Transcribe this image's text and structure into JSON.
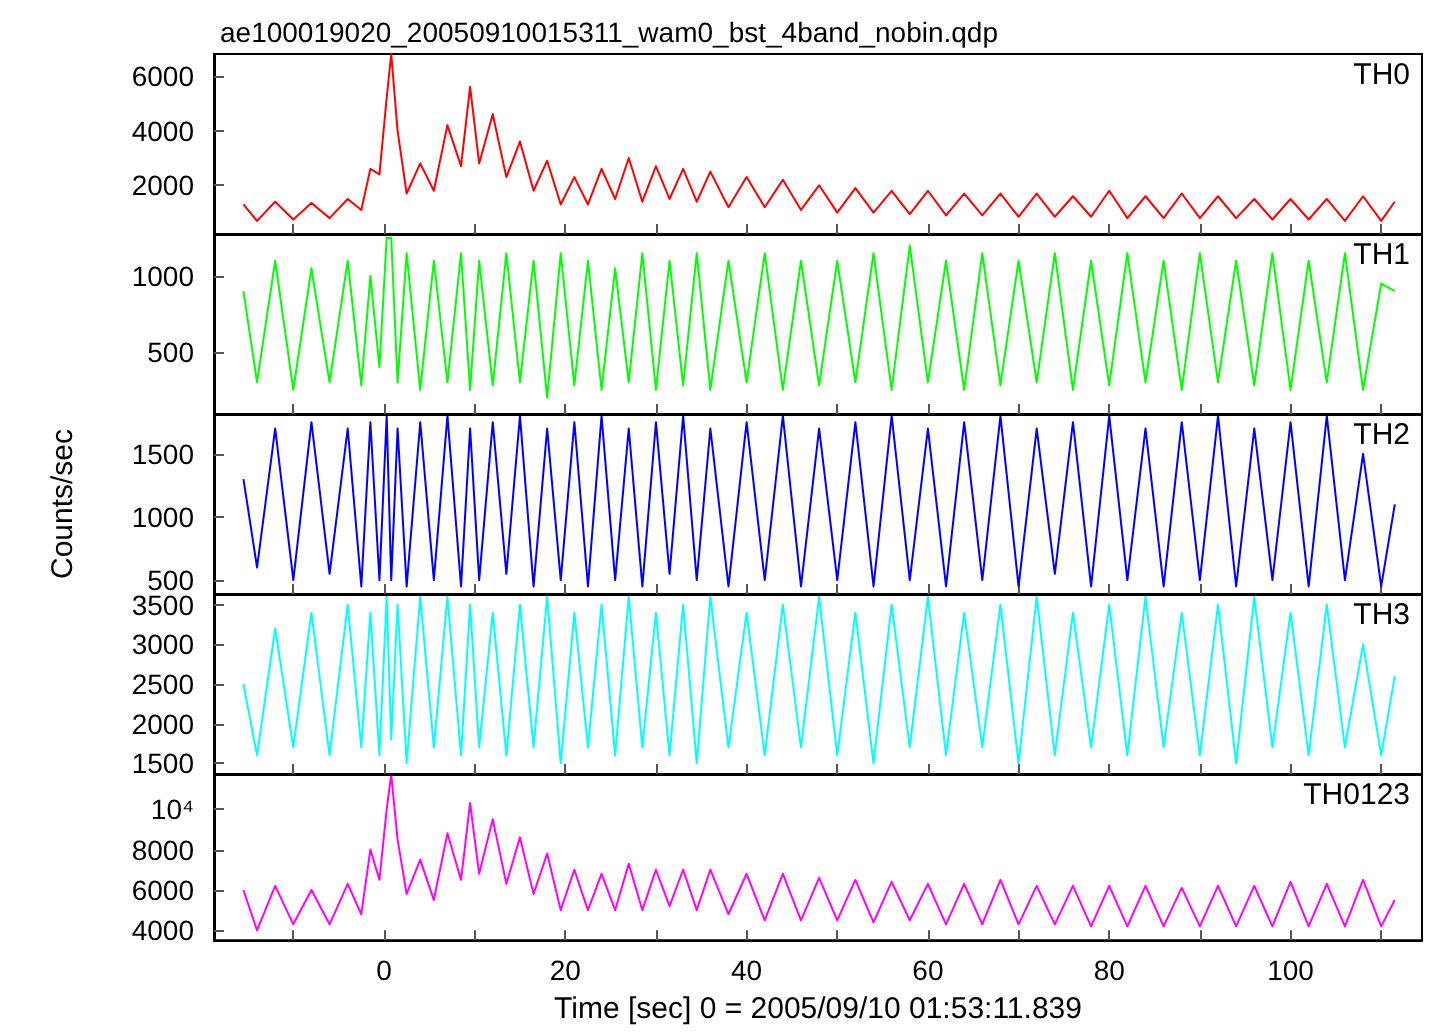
{
  "chart_data": [
    {
      "type": "line",
      "title": "ae100019020_20050910015311_wam0_bst_4band_nobin.qdp",
      "tick_labels": "y",
      "grid": false,
      "marker": "none",
      "x": [
        -15.5,
        -14,
        -12,
        -10,
        -8,
        -6,
        -4,
        -2.5,
        -1.5,
        -0.5,
        0.3,
        0.8,
        1.5,
        2.5,
        4,
        5.5,
        7,
        8.5,
        9.5,
        10.5,
        12,
        13.5,
        15,
        16.5,
        18,
        19.5,
        21,
        22.5,
        24,
        25.5,
        27,
        28.5,
        30,
        31.5,
        33,
        34.5,
        36,
        38,
        40,
        42,
        44,
        46,
        48,
        50,
        52,
        54,
        56,
        58,
        60,
        62,
        64,
        66,
        68,
        70,
        72,
        74,
        76,
        78,
        80,
        82,
        84,
        86,
        88,
        90,
        92,
        94,
        96,
        98,
        100,
        102,
        104,
        106,
        108,
        110,
        111.5
      ],
      "xlim": [
        -18.75,
        114.5
      ],
      "xticks": [
        {
          "value": -10,
          "label": null
        },
        0,
        {
          "value": 10,
          "label": null
        },
        20,
        {
          "value": 30,
          "label": null
        },
        40,
        {
          "value": 50,
          "label": null
        },
        60,
        {
          "value": 70,
          "label": null
        },
        80,
        {
          "value": 90,
          "label": null
        },
        100,
        {
          "value": 110,
          "label": null
        }
      ],
      "ylim": [
        220,
        6800
      ],
      "yticks": [
        2000,
        4000,
        6000
      ],
      "series": [
        {
          "name": "TH0",
          "color": "#ff0000",
          "values": [
            1300,
            700,
            1400,
            750,
            1350,
            800,
            1500,
            1100,
            2600,
            2400,
            5200,
            6800,
            4000,
            1700,
            2800,
            1800,
            4200,
            2700,
            5600,
            2800,
            4600,
            2300,
            3600,
            1800,
            2900,
            1300,
            2300,
            1300,
            2600,
            1500,
            3000,
            1400,
            2700,
            1500,
            2600,
            1400,
            2500,
            1200,
            2300,
            1200,
            2200,
            1100,
            2000,
            1000,
            1900,
            1000,
            1800,
            950,
            1800,
            900,
            1700,
            900,
            1700,
            850,
            1700,
            850,
            1600,
            850,
            1800,
            800,
            1600,
            800,
            1700,
            800,
            1600,
            800,
            1500,
            750,
            1500,
            750,
            1500,
            700,
            1600,
            700,
            1400
          ]
        }
      ]
    },
    {
      "type": "line",
      "tick_labels": "y",
      "grid": false,
      "marker": "none",
      "x": [
        -15.5,
        -14,
        -12,
        -10,
        -8,
        -6,
        -4,
        -2.5,
        -1.5,
        -0.5,
        0.3,
        0.8,
        1.5,
        2.5,
        4,
        5.5,
        7,
        8.5,
        9.5,
        10.5,
        12,
        13.5,
        15,
        16.5,
        18,
        19.5,
        21,
        22.5,
        24,
        25.5,
        27,
        28.5,
        30,
        31.5,
        33,
        34.5,
        36,
        38,
        40,
        42,
        44,
        46,
        48,
        50,
        52,
        54,
        56,
        58,
        60,
        62,
        64,
        66,
        68,
        70,
        72,
        74,
        76,
        78,
        80,
        82,
        84,
        86,
        88,
        90,
        92,
        94,
        96,
        98,
        100,
        102,
        104,
        106,
        108,
        110,
        111.5
      ],
      "xlim": [
        -18.75,
        114.5
      ],
      "xticks": [
        {
          "value": -10,
          "label": null
        },
        0,
        {
          "value": 10,
          "label": null
        },
        20,
        {
          "value": 30,
          "label": null
        },
        40,
        {
          "value": 50,
          "label": null
        },
        60,
        {
          "value": 70,
          "label": null
        },
        80,
        {
          "value": 90,
          "label": null
        },
        100,
        {
          "value": 110,
          "label": null
        }
      ],
      "ylim": [
        92,
        1276
      ],
      "yticks": [
        500,
        1000
      ],
      "series": [
        {
          "name": "TH1",
          "color": "#00ff00",
          "values": [
            900,
            300,
            1100,
            250,
            1050,
            300,
            1100,
            280,
            1000,
            400,
            1250,
            1250,
            300,
            1150,
            250,
            1100,
            300,
            1150,
            250,
            1100,
            280,
            1150,
            300,
            1100,
            200,
            1150,
            280,
            1100,
            250,
            1050,
            300,
            1150,
            250,
            1100,
            280,
            1150,
            250,
            1100,
            300,
            1150,
            250,
            1100,
            280,
            1100,
            300,
            1150,
            250,
            1200,
            300,
            1100,
            250,
            1150,
            280,
            1100,
            300,
            1150,
            250,
            1100,
            280,
            1150,
            300,
            1100,
            250,
            1150,
            300,
            1100,
            280,
            1150,
            250,
            1100,
            300,
            1150,
            250,
            950,
            900
          ]
        }
      ]
    },
    {
      "type": "line",
      "ylabel": "Counts/sec",
      "tick_labels": "y",
      "grid": false,
      "marker": "none",
      "x": [
        -15.5,
        -14,
        -12,
        -10,
        -8,
        -6,
        -4,
        -2.5,
        -1.5,
        -0.5,
        0.3,
        0.8,
        1.5,
        2.5,
        4,
        5.5,
        7,
        8.5,
        9.5,
        10.5,
        12,
        13.5,
        15,
        16.5,
        18,
        19.5,
        21,
        22.5,
        24,
        25.5,
        27,
        28.5,
        30,
        31.5,
        33,
        34.5,
        36,
        38,
        40,
        42,
        44,
        46,
        48,
        50,
        52,
        54,
        56,
        58,
        60,
        62,
        64,
        66,
        68,
        70,
        72,
        74,
        76,
        78,
        80,
        82,
        84,
        86,
        88,
        90,
        92,
        94,
        96,
        98,
        100,
        102,
        104,
        106,
        108,
        110,
        111.5
      ],
      "xlim": [
        -18.75,
        114.5
      ],
      "xticks": [
        {
          "value": -10,
          "label": null
        },
        0,
        {
          "value": 10,
          "label": null
        },
        20,
        {
          "value": 30,
          "label": null
        },
        40,
        {
          "value": 50,
          "label": null
        },
        60,
        {
          "value": 70,
          "label": null
        },
        80,
        {
          "value": 90,
          "label": null
        },
        100,
        {
          "value": 110,
          "label": null
        }
      ],
      "ylim": [
        390,
        1815
      ],
      "yticks": [
        500,
        1000,
        1500
      ],
      "series": [
        {
          "name": "TH2",
          "color": "#0000ff",
          "values": [
            1300,
            600,
            1700,
            500,
            1750,
            550,
            1700,
            450,
            1750,
            500,
            1800,
            500,
            1700,
            450,
            1750,
            500,
            1800,
            450,
            1700,
            500,
            1750,
            550,
            1800,
            450,
            1700,
            500,
            1750,
            450,
            1800,
            500,
            1700,
            450,
            1750,
            550,
            1800,
            500,
            1700,
            450,
            1750,
            500,
            1800,
            450,
            1700,
            500,
            1750,
            450,
            1800,
            500,
            1700,
            450,
            1750,
            500,
            1800,
            450,
            1700,
            550,
            1750,
            450,
            1800,
            500,
            1700,
            450,
            1750,
            500,
            1800,
            450,
            1700,
            500,
            1750,
            450,
            1800,
            500,
            1500,
            450,
            1100
          ]
        }
      ]
    },
    {
      "type": "line",
      "tick_labels": "y",
      "grid": false,
      "marker": "none",
      "x": [
        -15.5,
        -14,
        -12,
        -10,
        -8,
        -6,
        -4,
        -2.5,
        -1.5,
        -0.5,
        0.3,
        0.8,
        1.5,
        2.5,
        4,
        5.5,
        7,
        8.5,
        9.5,
        10.5,
        12,
        13.5,
        15,
        16.5,
        18,
        19.5,
        21,
        22.5,
        24,
        25.5,
        27,
        28.5,
        30,
        31.5,
        33,
        34.5,
        36,
        38,
        40,
        42,
        44,
        46,
        48,
        50,
        52,
        54,
        56,
        58,
        60,
        62,
        64,
        66,
        68,
        70,
        72,
        74,
        76,
        78,
        80,
        82,
        84,
        86,
        88,
        90,
        92,
        94,
        96,
        98,
        100,
        102,
        104,
        106,
        108,
        110,
        111.5
      ],
      "xlim": [
        -18.75,
        114.5
      ],
      "xticks": [
        {
          "value": -10,
          "label": null
        },
        0,
        {
          "value": 10,
          "label": null
        },
        20,
        {
          "value": 30,
          "label": null
        },
        40,
        {
          "value": 50,
          "label": null
        },
        60,
        {
          "value": 70,
          "label": null
        },
        80,
        {
          "value": 90,
          "label": null
        },
        100,
        {
          "value": 110,
          "label": null
        }
      ],
      "ylim": [
        1365,
        3635
      ],
      "yticks": [
        1500,
        2000,
        2500,
        3000,
        3500
      ],
      "series": [
        {
          "name": "TH3",
          "color": "#00ffff",
          "values": [
            2500,
            1600,
            3200,
            1700,
            3400,
            1600,
            3500,
            1700,
            3400,
            1600,
            3600,
            1800,
            3500,
            1500,
            3600,
            1700,
            3600,
            1600,
            3500,
            1700,
            3400,
            1600,
            3500,
            1700,
            3600,
            1500,
            3400,
            1700,
            3500,
            1600,
            3600,
            1700,
            3400,
            1600,
            3500,
            1500,
            3600,
            1700,
            3400,
            1600,
            3500,
            1700,
            3600,
            1600,
            3400,
            1500,
            3500,
            1700,
            3600,
            1600,
            3400,
            1700,
            3500,
            1500,
            3600,
            1600,
            3400,
            1700,
            3500,
            1600,
            3600,
            1700,
            3400,
            1600,
            3500,
            1500,
            3600,
            1700,
            3400,
            1600,
            3500,
            1700,
            3000,
            1600,
            2600
          ]
        }
      ]
    },
    {
      "type": "line",
      "xlabel": "Time [sec] 0 = 2005/09/10 01:53:11.839",
      "grid": false,
      "marker": "none",
      "x": [
        -15.5,
        -14,
        -12,
        -10,
        -8,
        -6,
        -4,
        -2.5,
        -1.5,
        -0.5,
        0.3,
        0.8,
        1.5,
        2.5,
        4,
        5.5,
        7,
        8.5,
        9.5,
        10.5,
        12,
        13.5,
        15,
        16.5,
        18,
        19.5,
        21,
        22.5,
        24,
        25.5,
        27,
        28.5,
        30,
        31.5,
        33,
        34.5,
        36,
        38,
        40,
        42,
        44,
        46,
        48,
        50,
        52,
        54,
        56,
        58,
        60,
        62,
        64,
        66,
        68,
        70,
        72,
        74,
        76,
        78,
        80,
        82,
        84,
        86,
        88,
        90,
        92,
        94,
        96,
        98,
        100,
        102,
        104,
        106,
        108,
        110,
        111.5
      ],
      "xlim": [
        -18.75,
        114.5
      ],
      "xticks": [
        {
          "value": -10,
          "label": null
        },
        0,
        {
          "value": 10,
          "label": null
        },
        20,
        {
          "value": 30,
          "label": null
        },
        40,
        {
          "value": 50,
          "label": null
        },
        60,
        {
          "value": 70,
          "label": null
        },
        80,
        {
          "value": 90,
          "label": null
        },
        100,
        {
          "value": 110,
          "label": null
        }
      ],
      "ylim": [
        3515,
        11735
      ],
      "yticks": [
        4000,
        6000,
        8000,
        {
          "value": 10000,
          "label": "10⁴"
        }
      ],
      "series": [
        {
          "name": "TH0123",
          "color": "#ff00ff",
          "values": [
            6000,
            4000,
            6200,
            4300,
            6000,
            4300,
            6300,
            4800,
            8000,
            6500,
            10000,
            11700,
            8500,
            5800,
            7500,
            5500,
            8800,
            6500,
            10300,
            6800,
            9500,
            6300,
            8600,
            5800,
            7800,
            5000,
            7000,
            5000,
            6800,
            5000,
            7300,
            5000,
            7000,
            5200,
            7000,
            5000,
            7000,
            4800,
            6800,
            4500,
            6800,
            4500,
            6600,
            4500,
            6500,
            4400,
            6400,
            4500,
            6300,
            4300,
            6300,
            4300,
            6500,
            4300,
            6200,
            4300,
            6200,
            4200,
            6200,
            4200,
            6200,
            4200,
            6100,
            4200,
            6200,
            4200,
            6200,
            4200,
            6400,
            4200,
            6300,
            4200,
            6500,
            4200,
            5500
          ]
        }
      ]
    }
  ]
}
